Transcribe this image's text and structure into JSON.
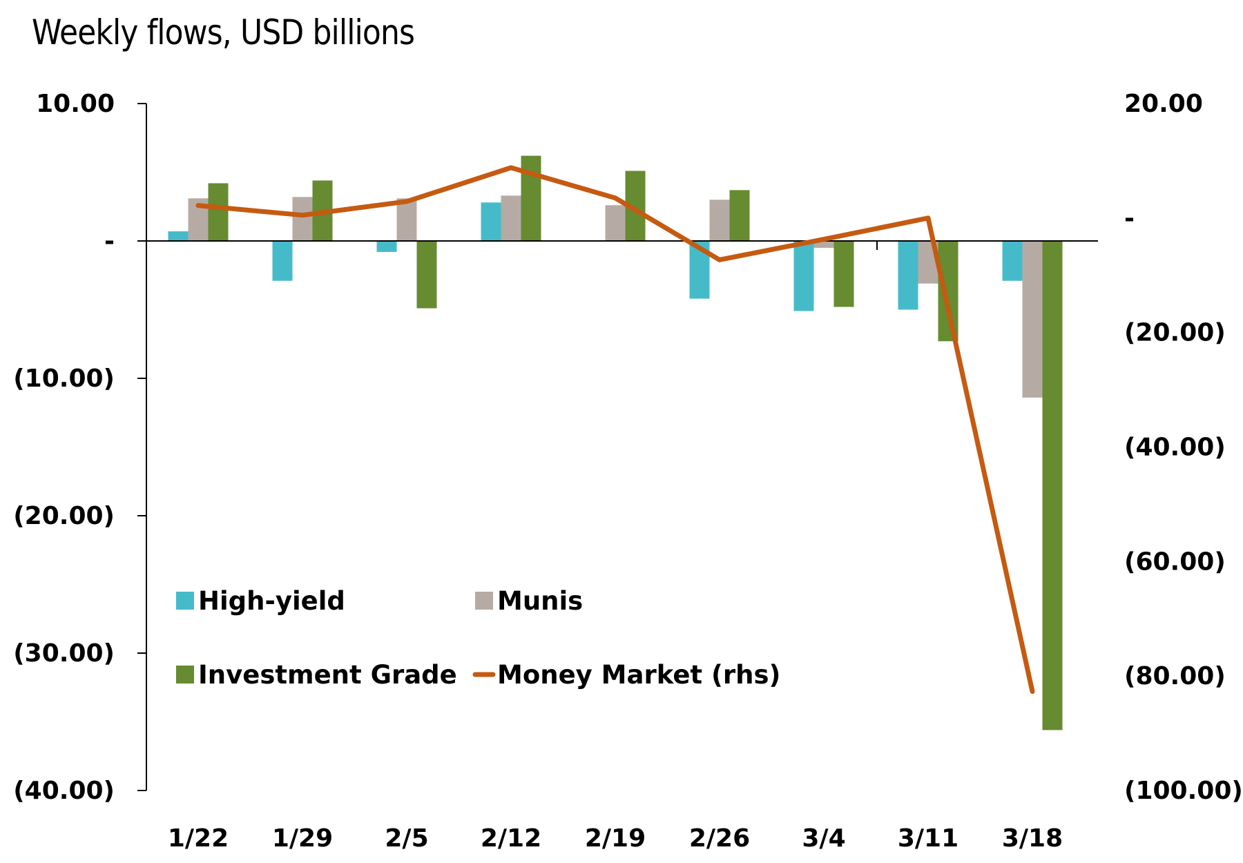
{
  "chart_data": {
    "type": "bar",
    "title": "Weekly flows, USD billions",
    "xlabel": "",
    "ylabel": "",
    "categories": [
      "1/22",
      "1/29",
      "2/5",
      "2/12",
      "2/19",
      "2/26",
      "3/4",
      "3/11",
      "3/18"
    ],
    "series": [
      {
        "name": "High-yield",
        "type": "bar",
        "axis": "left",
        "color": "#45BBCA",
        "values": [
          0.7,
          -2.9,
          -0.8,
          2.8,
          0.0,
          -4.2,
          -5.1,
          -5.0,
          -2.9
        ]
      },
      {
        "name": "Munis",
        "type": "bar",
        "axis": "left",
        "color": "#B5ABA4",
        "values": [
          3.1,
          3.2,
          3.1,
          3.3,
          2.6,
          3.0,
          -0.5,
          -3.1,
          -11.4
        ]
      },
      {
        "name": "Investment Grade",
        "type": "bar",
        "axis": "left",
        "color": "#668B31",
        "values": [
          4.2,
          4.4,
          -4.9,
          6.2,
          5.1,
          3.7,
          -4.8,
          -7.3,
          -35.6
        ]
      },
      {
        "name": "Money Market (rhs)",
        "type": "line",
        "axis": "right",
        "color": "#C55A11",
        "values": [
          2.2,
          0.5,
          2.9,
          8.8,
          3.5,
          -7.3,
          -3.7,
          0.0,
          -82.7
        ]
      }
    ],
    "y_left": {
      "ylim": [
        -40,
        10
      ],
      "ticks": [
        10,
        0,
        -10,
        -20,
        -30,
        -40
      ],
      "tick_labels": [
        "10.00",
        "-",
        "(10.00)",
        "(20.00)",
        "(30.00)",
        "(40.00)"
      ]
    },
    "y_right": {
      "ylim": [
        -100,
        20
      ],
      "ticks": [
        20,
        0,
        -20,
        -40,
        -60,
        -80,
        -100
      ],
      "tick_labels": [
        "20.00",
        "-",
        "(20.00)",
        "(40.00)",
        "(60.00)",
        "(80.00)",
        "(100.00)"
      ]
    },
    "grid": false,
    "legend": {
      "placement": "lower-left-inside",
      "entries": [
        "High-yield",
        "Munis",
        "Investment Grade",
        "Money Market (rhs)"
      ]
    }
  }
}
